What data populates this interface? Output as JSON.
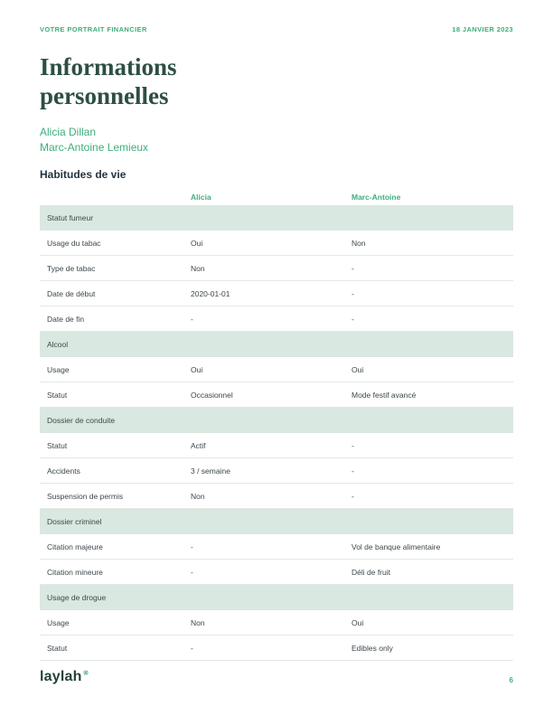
{
  "page": {
    "header_left": "VOTRE PORTRAIT FINANCIER",
    "header_right": "18 JANVIER 2023",
    "title_line1": "Informations",
    "title_line2": "personnelles",
    "names": [
      "Alicia Dillan",
      "Marc-Antoine Lemieux"
    ],
    "section_title": "Habitudes de vie",
    "footer": {
      "logo_text": "laylah",
      "logo_icon": "flower-asterisk-icon",
      "logo_icon_glyph": "❋",
      "page_number": "6"
    }
  },
  "colors": {
    "accent_green": "#3eae7a",
    "title_dark_green": "#2d4f42",
    "section_row_bg": "#d9e8e0",
    "body_text": "#3d474c",
    "row_border": "#e2e8e5",
    "logo_dark": "#23423a"
  },
  "table": {
    "columns": [
      "",
      "Alicia",
      "Marc-Antoine"
    ],
    "rows": [
      {
        "type": "section",
        "label": "Statut fumeur"
      },
      {
        "type": "data",
        "label": "Usage du tabac",
        "alicia": "Oui",
        "marc": "Non"
      },
      {
        "type": "data",
        "label": "Type de tabac",
        "alicia": "Non",
        "marc": "-"
      },
      {
        "type": "data",
        "label": "Date de début",
        "alicia": "2020-01-01",
        "marc": "-"
      },
      {
        "type": "data",
        "label": "Date de fin",
        "alicia": "-",
        "marc": "-"
      },
      {
        "type": "section",
        "label": "Alcool"
      },
      {
        "type": "data",
        "label": "Usage",
        "alicia": "Oui",
        "marc": "Oui"
      },
      {
        "type": "data",
        "label": "Statut",
        "alicia": "Occasionnel",
        "marc": "Mode festif avancé"
      },
      {
        "type": "section",
        "label": "Dossier de conduite"
      },
      {
        "type": "data",
        "label": "Statut",
        "alicia": "Actif",
        "marc": "-"
      },
      {
        "type": "data",
        "label": "Accidents",
        "alicia": "3 / semaine",
        "marc": "-"
      },
      {
        "type": "data",
        "label": "Suspension de permis",
        "alicia": "Non",
        "marc": "-"
      },
      {
        "type": "section",
        "label": "Dossier criminel"
      },
      {
        "type": "data",
        "label": "Citation majeure",
        "alicia": "-",
        "marc": "Vol de banque alimentaire"
      },
      {
        "type": "data",
        "label": "Citation mineure",
        "alicia": "-",
        "marc": "Déli de fruit"
      },
      {
        "type": "section",
        "label": "Usage de drogue"
      },
      {
        "type": "data",
        "label": "Usage",
        "alicia": "Non",
        "marc": "Oui"
      },
      {
        "type": "data",
        "label": "Statut",
        "alicia": "-",
        "marc": "Edibles only"
      }
    ]
  }
}
